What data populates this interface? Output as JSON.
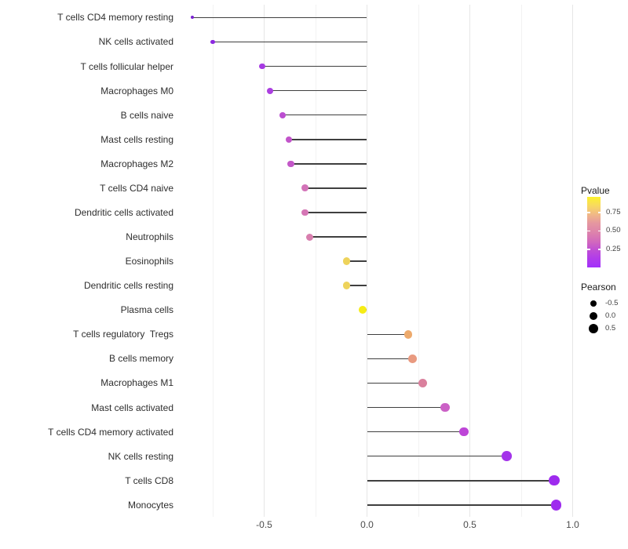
{
  "chart_data": {
    "type": "scatter",
    "variant": "lollipop",
    "title": "",
    "xlabel": "",
    "ylabel": "",
    "xlim": [
      -0.95,
      1.1
    ],
    "x_major_ticks": [
      -0.5,
      0.0,
      0.5,
      1.0
    ],
    "x_major_tick_labels": [
      "-0.5",
      "0.0",
      "0.5",
      "1.0"
    ],
    "x_minor_ticks": [
      -0.75,
      -0.25,
      0.25,
      0.75
    ],
    "grid": "vertical-only",
    "baseline_value": 0.0,
    "stick_color": "#3f3f3f",
    "rows": [
      {
        "label": "T cells CD4 memory resting",
        "pearson": -0.85,
        "dot_color": "#7a22d0",
        "dot_diameter": 4.0
      },
      {
        "label": "NK cells activated",
        "pearson": -0.75,
        "dot_color": "#8c28e0",
        "dot_diameter": 5.5
      },
      {
        "label": "T cells follicular helper",
        "pearson": -0.51,
        "dot_color": "#a63ae2",
        "dot_diameter": 7.8
      },
      {
        "label": "Macrophages M0",
        "pearson": -0.47,
        "dot_color": "#ab3fe0",
        "dot_diameter": 8.0
      },
      {
        "label": "B cells naive",
        "pearson": -0.41,
        "dot_color": "#bc4ed1",
        "dot_diameter": 8.3
      },
      {
        "label": "Mast cells resting",
        "pearson": -0.38,
        "dot_color": "#c254ca",
        "dot_diameter": 8.5
      },
      {
        "label": "Macrophages M2",
        "pearson": -0.37,
        "dot_color": "#c357c8",
        "dot_diameter": 8.5
      },
      {
        "label": "T cells CD4 naive",
        "pearson": -0.3,
        "dot_color": "#d373b8",
        "dot_diameter": 8.9
      },
      {
        "label": "Dendritic cells activated",
        "pearson": -0.3,
        "dot_color": "#d576b5",
        "dot_diameter": 8.9
      },
      {
        "label": "Neutrophils",
        "pearson": -0.28,
        "dot_color": "#d87eae",
        "dot_diameter": 9.0
      },
      {
        "label": "Eosinophils",
        "pearson": -0.1,
        "dot_color": "#eed35b",
        "dot_diameter": 9.6
      },
      {
        "label": "Dendritic cells resting",
        "pearson": -0.1,
        "dot_color": "#eed35b",
        "dot_diameter": 9.6
      },
      {
        "label": "Plasma cells",
        "pearson": -0.02,
        "dot_color": "#f6ec15",
        "dot_diameter": 9.9
      },
      {
        "label": "T cells regulatory  Tregs",
        "pearson": 0.2,
        "dot_color": "#edaa6c",
        "dot_diameter": 10.7
      },
      {
        "label": "B cells memory",
        "pearson": 0.22,
        "dot_color": "#e99a80",
        "dot_diameter": 10.8
      },
      {
        "label": "Macrophages M1",
        "pearson": 0.27,
        "dot_color": "#da809d",
        "dot_diameter": 11.0
      },
      {
        "label": "Mast cells activated",
        "pearson": 0.38,
        "dot_color": "#cb61c6",
        "dot_diameter": 11.5
      },
      {
        "label": "T cells CD4 memory activated",
        "pearson": 0.47,
        "dot_color": "#bd45d7",
        "dot_diameter": 11.8
      },
      {
        "label": "NK cells resting",
        "pearson": 0.68,
        "dot_color": "#a434ea",
        "dot_diameter": 12.6
      },
      {
        "label": "T cells CD8",
        "pearson": 0.91,
        "dot_color": "#9e2bee",
        "dot_diameter": 13.4
      },
      {
        "label": "Monocytes",
        "pearson": 0.92,
        "dot_color": "#9e2bee",
        "dot_diameter": 13.6
      }
    ],
    "legend_color": {
      "title": "Pvalue",
      "tick_labels": [
        "0.75",
        "0.50",
        "0.25"
      ],
      "gradient_top_to_bottom": [
        "#fcf22c",
        "#f8d960",
        "#f0b887",
        "#e596a0",
        "#dd84ab",
        "#d36bbb",
        "#c04fd4",
        "#b13cea",
        "#a230fb"
      ]
    },
    "legend_size": {
      "title": "Pearson",
      "entries": [
        {
          "label": "-0.5",
          "dot_diameter": 8.7
        },
        {
          "label": "0.0",
          "dot_diameter": 10.7
        },
        {
          "label": "0.5",
          "dot_diameter": 12.7
        }
      ],
      "dot_color": "#000000"
    }
  }
}
